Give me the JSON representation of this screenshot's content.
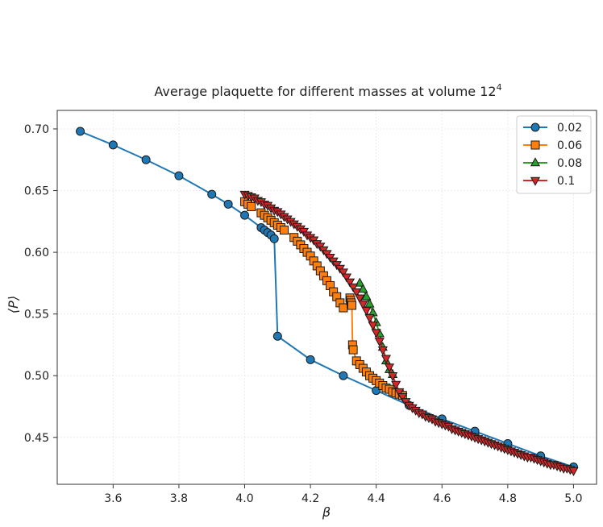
{
  "chart_data": {
    "type": "line",
    "title": "Average plaquette for different masses at volume 12",
    "title_superscript": "4",
    "xlabel": "β",
    "ylabel": "⟨P⟩",
    "xlim": [
      3.43,
      5.07
    ],
    "ylim": [
      0.412,
      0.715
    ],
    "x_ticks": [
      3.6,
      3.8,
      4.0,
      4.2,
      4.4,
      4.6,
      4.8,
      5.0
    ],
    "x_tick_labels": [
      "3.6",
      "3.8",
      "4.0",
      "4.2",
      "4.4",
      "4.6",
      "4.8",
      "5.0"
    ],
    "y_ticks": [
      0.45,
      0.5,
      0.55,
      0.6,
      0.65,
      0.7
    ],
    "y_tick_labels": [
      "0.45",
      "0.50",
      "0.55",
      "0.60",
      "0.65",
      "0.70"
    ],
    "grid": true,
    "legend_position": "top-right",
    "series": [
      {
        "name": "0.02",
        "color": "#1f77b4",
        "marker": "circle",
        "points": [
          [
            3.5,
            0.698
          ],
          [
            3.6,
            0.687
          ],
          [
            3.7,
            0.675
          ],
          [
            3.8,
            0.662
          ],
          [
            3.9,
            0.647
          ],
          [
            3.95,
            0.639
          ],
          [
            4.0,
            0.63
          ],
          [
            4.05,
            0.62
          ],
          [
            4.06,
            0.618
          ],
          [
            4.07,
            0.616
          ],
          [
            4.08,
            0.614
          ],
          [
            4.09,
            0.611
          ],
          [
            4.1,
            0.532
          ],
          [
            4.2,
            0.513
          ],
          [
            4.3,
            0.5
          ],
          [
            4.4,
            0.488
          ],
          [
            4.5,
            0.476
          ],
          [
            4.6,
            0.465
          ],
          [
            4.7,
            0.455
          ],
          [
            4.8,
            0.445
          ],
          [
            4.9,
            0.435
          ],
          [
            5.0,
            0.426
          ]
        ]
      },
      {
        "name": "0.06",
        "color": "#ff7f0e",
        "marker": "square",
        "points": [
          [
            4.0,
            0.641
          ],
          [
            4.01,
            0.639
          ],
          [
            4.02,
            0.637
          ],
          [
            4.05,
            0.632
          ],
          [
            4.06,
            0.63
          ],
          [
            4.07,
            0.628
          ],
          [
            4.08,
            0.626
          ],
          [
            4.09,
            0.624
          ],
          [
            4.1,
            0.622
          ],
          [
            4.11,
            0.62
          ],
          [
            4.12,
            0.618
          ],
          [
            4.15,
            0.612
          ],
          [
            4.16,
            0.609
          ],
          [
            4.17,
            0.606
          ],
          [
            4.18,
            0.603
          ],
          [
            4.19,
            0.6
          ],
          [
            4.2,
            0.597
          ],
          [
            4.21,
            0.593
          ],
          [
            4.22,
            0.589
          ],
          [
            4.23,
            0.585
          ],
          [
            4.24,
            0.581
          ],
          [
            4.25,
            0.577
          ],
          [
            4.26,
            0.573
          ],
          [
            4.27,
            0.568
          ],
          [
            4.28,
            0.564
          ],
          [
            4.29,
            0.559
          ],
          [
            4.3,
            0.555
          ],
          [
            4.32,
            0.563
          ],
          [
            4.322,
            0.561
          ],
          [
            4.324,
            0.559
          ],
          [
            4.326,
            0.557
          ],
          [
            4.328,
            0.525
          ],
          [
            4.33,
            0.521
          ],
          [
            4.34,
            0.512
          ],
          [
            4.35,
            0.509
          ],
          [
            4.36,
            0.506
          ],
          [
            4.37,
            0.503
          ],
          [
            4.38,
            0.5
          ],
          [
            4.39,
            0.498
          ],
          [
            4.4,
            0.496
          ],
          [
            4.41,
            0.494
          ],
          [
            4.42,
            0.492
          ],
          [
            4.43,
            0.49
          ],
          [
            4.44,
            0.489
          ],
          [
            4.45,
            0.487
          ],
          [
            4.46,
            0.486
          ],
          [
            4.47,
            0.485
          ],
          [
            4.48,
            0.484
          ]
        ]
      },
      {
        "name": "0.08",
        "color": "#2ca02c",
        "marker": "triangle-up",
        "points": [
          [
            4.35,
            0.575
          ],
          [
            4.36,
            0.57
          ],
          [
            4.37,
            0.564
          ],
          [
            4.38,
            0.558
          ],
          [
            4.39,
            0.551
          ],
          [
            4.4,
            0.543
          ],
          [
            4.41,
            0.534
          ],
          [
            4.42,
            0.523
          ],
          [
            4.43,
            0.512
          ],
          [
            4.44,
            0.505
          ],
          [
            4.45,
            0.501
          ]
        ]
      },
      {
        "name": "0.1",
        "color": "#d62728",
        "marker": "triangle-down",
        "points": [
          [
            4.0,
            0.647
          ],
          [
            4.01,
            0.646
          ],
          [
            4.02,
            0.645
          ],
          [
            4.03,
            0.644
          ],
          [
            4.04,
            0.642
          ],
          [
            4.05,
            0.641
          ],
          [
            4.06,
            0.639
          ],
          [
            4.07,
            0.638
          ],
          [
            4.08,
            0.636
          ],
          [
            4.09,
            0.634
          ],
          [
            4.1,
            0.633
          ],
          [
            4.11,
            0.631
          ],
          [
            4.12,
            0.629
          ],
          [
            4.13,
            0.627
          ],
          [
            4.14,
            0.625
          ],
          [
            4.15,
            0.623
          ],
          [
            4.16,
            0.621
          ],
          [
            4.17,
            0.619
          ],
          [
            4.18,
            0.617
          ],
          [
            4.19,
            0.614
          ],
          [
            4.2,
            0.612
          ],
          [
            4.21,
            0.61
          ],
          [
            4.22,
            0.607
          ],
          [
            4.23,
            0.605
          ],
          [
            4.24,
            0.602
          ],
          [
            4.25,
            0.599
          ],
          [
            4.26,
            0.596
          ],
          [
            4.27,
            0.593
          ],
          [
            4.28,
            0.59
          ],
          [
            4.29,
            0.587
          ],
          [
            4.3,
            0.584
          ],
          [
            4.31,
            0.58
          ],
          [
            4.32,
            0.576
          ],
          [
            4.33,
            0.572
          ],
          [
            4.34,
            0.568
          ],
          [
            4.35,
            0.563
          ],
          [
            4.36,
            0.558
          ],
          [
            4.37,
            0.553
          ],
          [
            4.38,
            0.547
          ],
          [
            4.39,
            0.541
          ],
          [
            4.4,
            0.535
          ],
          [
            4.41,
            0.528
          ],
          [
            4.42,
            0.521
          ],
          [
            4.43,
            0.514
          ],
          [
            4.44,
            0.507
          ],
          [
            4.45,
            0.5
          ],
          [
            4.46,
            0.493
          ],
          [
            4.47,
            0.487
          ],
          [
            4.48,
            0.483
          ],
          [
            4.49,
            0.479
          ],
          [
            4.5,
            0.476
          ],
          [
            4.51,
            0.474
          ],
          [
            4.52,
            0.472
          ],
          [
            4.53,
            0.47
          ],
          [
            4.54,
            0.469
          ],
          [
            4.55,
            0.467
          ],
          [
            4.56,
            0.466
          ],
          [
            4.57,
            0.465
          ],
          [
            4.58,
            0.463
          ],
          [
            4.59,
            0.462
          ],
          [
            4.6,
            0.461
          ],
          [
            4.61,
            0.46
          ],
          [
            4.62,
            0.459
          ],
          [
            4.63,
            0.457
          ],
          [
            4.64,
            0.456
          ],
          [
            4.65,
            0.455
          ],
          [
            4.66,
            0.454
          ],
          [
            4.67,
            0.453
          ],
          [
            4.68,
            0.452
          ],
          [
            4.69,
            0.451
          ],
          [
            4.7,
            0.45
          ],
          [
            4.71,
            0.449
          ],
          [
            4.72,
            0.448
          ],
          [
            4.73,
            0.447
          ],
          [
            4.74,
            0.446
          ],
          [
            4.75,
            0.445
          ],
          [
            4.76,
            0.444
          ],
          [
            4.77,
            0.443
          ],
          [
            4.78,
            0.442
          ],
          [
            4.79,
            0.441
          ],
          [
            4.8,
            0.44
          ],
          [
            4.81,
            0.439
          ],
          [
            4.82,
            0.438
          ],
          [
            4.83,
            0.437
          ],
          [
            4.84,
            0.436
          ],
          [
            4.85,
            0.435
          ],
          [
            4.86,
            0.434
          ],
          [
            4.87,
            0.434
          ],
          [
            4.88,
            0.433
          ],
          [
            4.89,
            0.432
          ],
          [
            4.9,
            0.431
          ],
          [
            4.91,
            0.43
          ],
          [
            4.92,
            0.429
          ],
          [
            4.93,
            0.428
          ],
          [
            4.94,
            0.428
          ],
          [
            4.95,
            0.427
          ],
          [
            4.96,
            0.426
          ],
          [
            4.97,
            0.425
          ],
          [
            4.98,
            0.425
          ],
          [
            4.99,
            0.424
          ],
          [
            5.0,
            0.423
          ]
        ]
      }
    ]
  }
}
